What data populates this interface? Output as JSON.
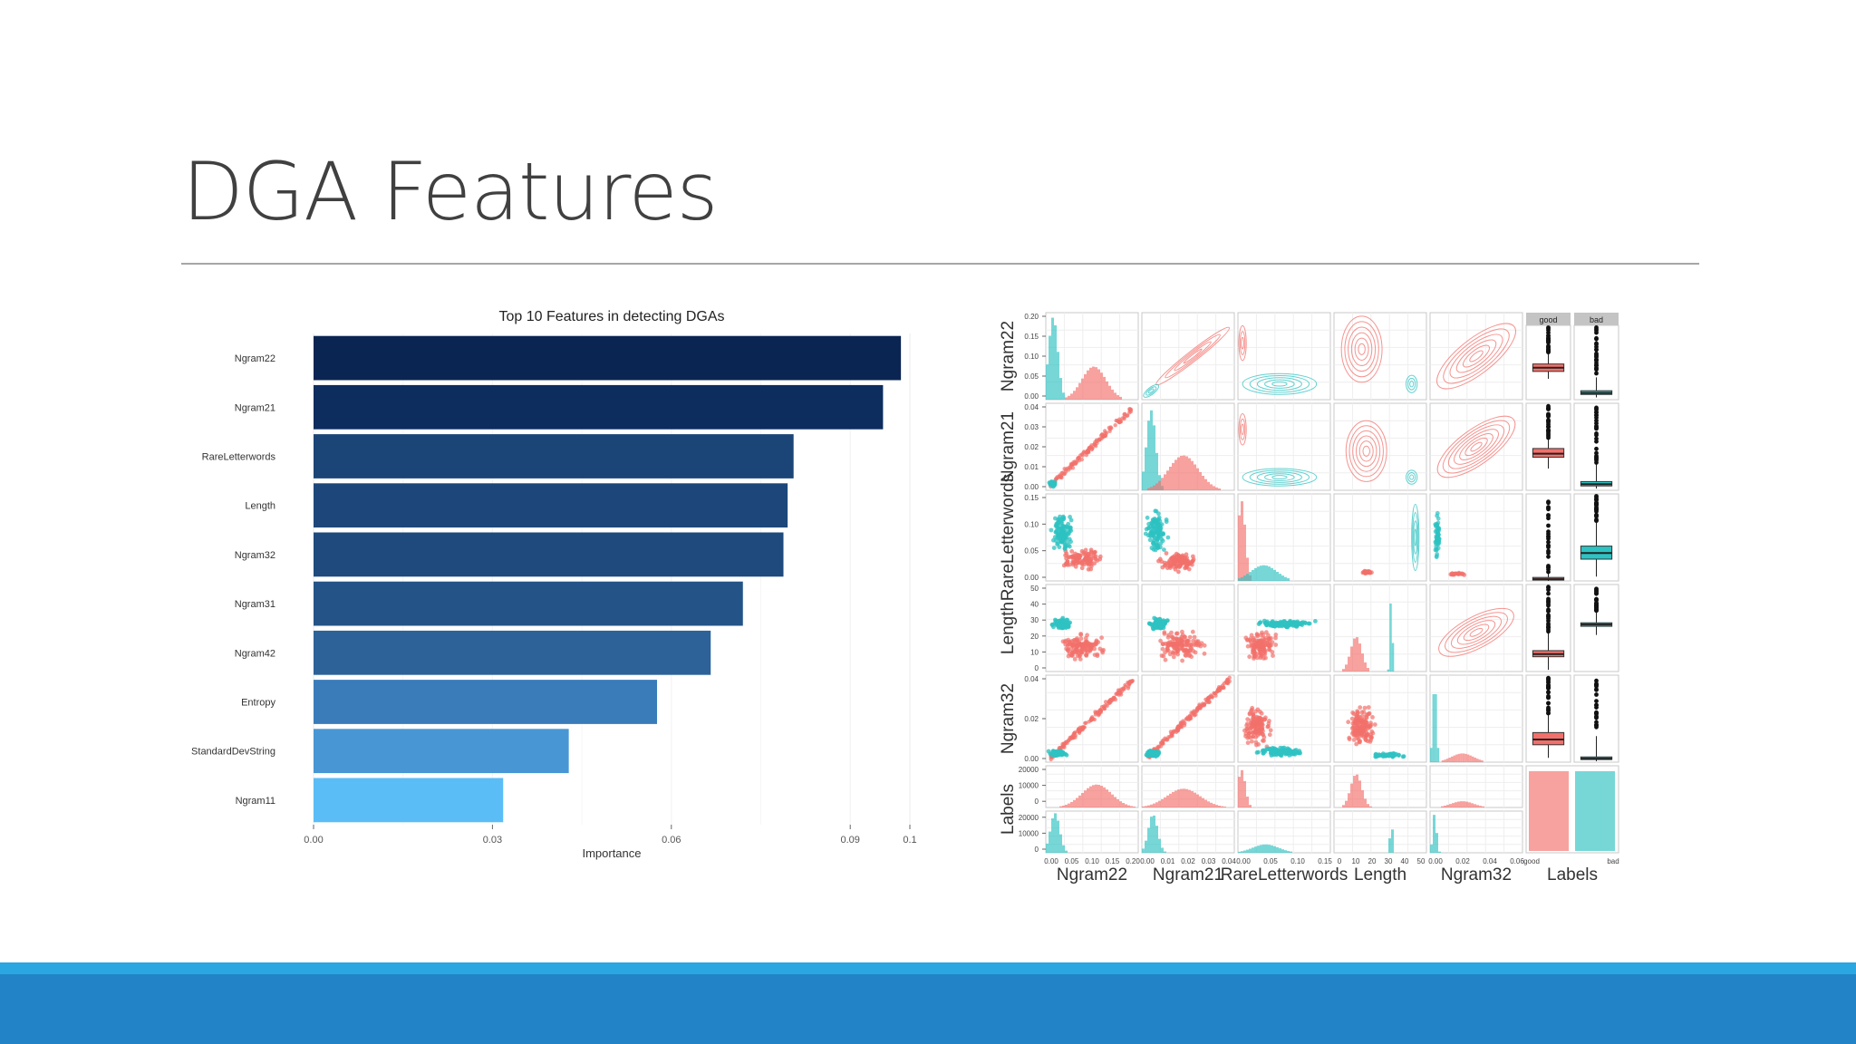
{
  "slide": {
    "title": "DGA Features",
    "colors": {
      "footer_stripe": "#2aa7e0",
      "footer_band": "#2283c7",
      "rule": "#a6a6a6"
    }
  },
  "chart_data": [
    {
      "type": "bar",
      "orientation": "horizontal",
      "title": "Top 10 Features in detecting DGAs",
      "xlabel": "Importance",
      "ylabel": "",
      "categories": [
        "Ngram22",
        "Ngram21",
        "RareLetterwords",
        "Length",
        "Ngram32",
        "Ngram31",
        "Ngram42",
        "Entropy",
        "StandardDevString",
        "Ngram11"
      ],
      "values": [
        0.0985,
        0.0955,
        0.0805,
        0.0795,
        0.0788,
        0.072,
        0.0666,
        0.0576,
        0.0428,
        0.0318
      ],
      "xlim": [
        0,
        0.1
      ],
      "xticks": [
        "0.00",
        "0.03",
        "0.06",
        "0.09",
        "0.1"
      ],
      "tick_values": [
        0,
        0.03,
        0.06,
        0.09,
        0.1
      ],
      "colors": [
        "#0b2553",
        "#0d2d5f",
        "#1c4577",
        "#1d477a",
        "#1e4a7e",
        "#245487",
        "#2d6299",
        "#3a7cba",
        "#4897d4",
        "#5bbdf6"
      ],
      "grid": true
    },
    {
      "type": "scatter",
      "subtype": "scatter-matrix",
      "variables": [
        "Ngram22",
        "Ngram21",
        "RareLetterwords",
        "Length",
        "Ngram32",
        "Labels"
      ],
      "label_levels": [
        "good",
        "bad"
      ],
      "colors": {
        "good": "#f2706b",
        "bad": "#2ec2c2"
      },
      "row_tick_labels": [
        [
          "0.20",
          "0.15",
          "0.10",
          "0.05",
          "0.00"
        ],
        [
          "0.04",
          "0.03",
          "0.02",
          "0.01",
          "0.00"
        ],
        [
          "0.15",
          "0.10",
          "0.05",
          "0.00"
        ],
        [
          "50",
          "40",
          "30",
          "20",
          "10",
          "0"
        ],
        [
          "0.04",
          "0.02",
          "0.00"
        ],
        [
          "20000",
          "10000",
          "0",
          "20000",
          "10000",
          "0"
        ]
      ],
      "col_tick_labels": [
        [
          "0.00",
          "0.05",
          "0.10",
          "0.15",
          "0.20"
        ],
        [
          "0.00",
          "0.01",
          "0.02",
          "0.03",
          "0.04"
        ],
        [
          "0.00",
          "0.05",
          "0.10",
          "0.15"
        ],
        [
          "0",
          "10",
          "20",
          "30",
          "40",
          "50"
        ],
        [
          "0.00",
          "0.02",
          "0.04",
          "0.06"
        ],
        [
          "good",
          "bad"
        ]
      ]
    }
  ]
}
